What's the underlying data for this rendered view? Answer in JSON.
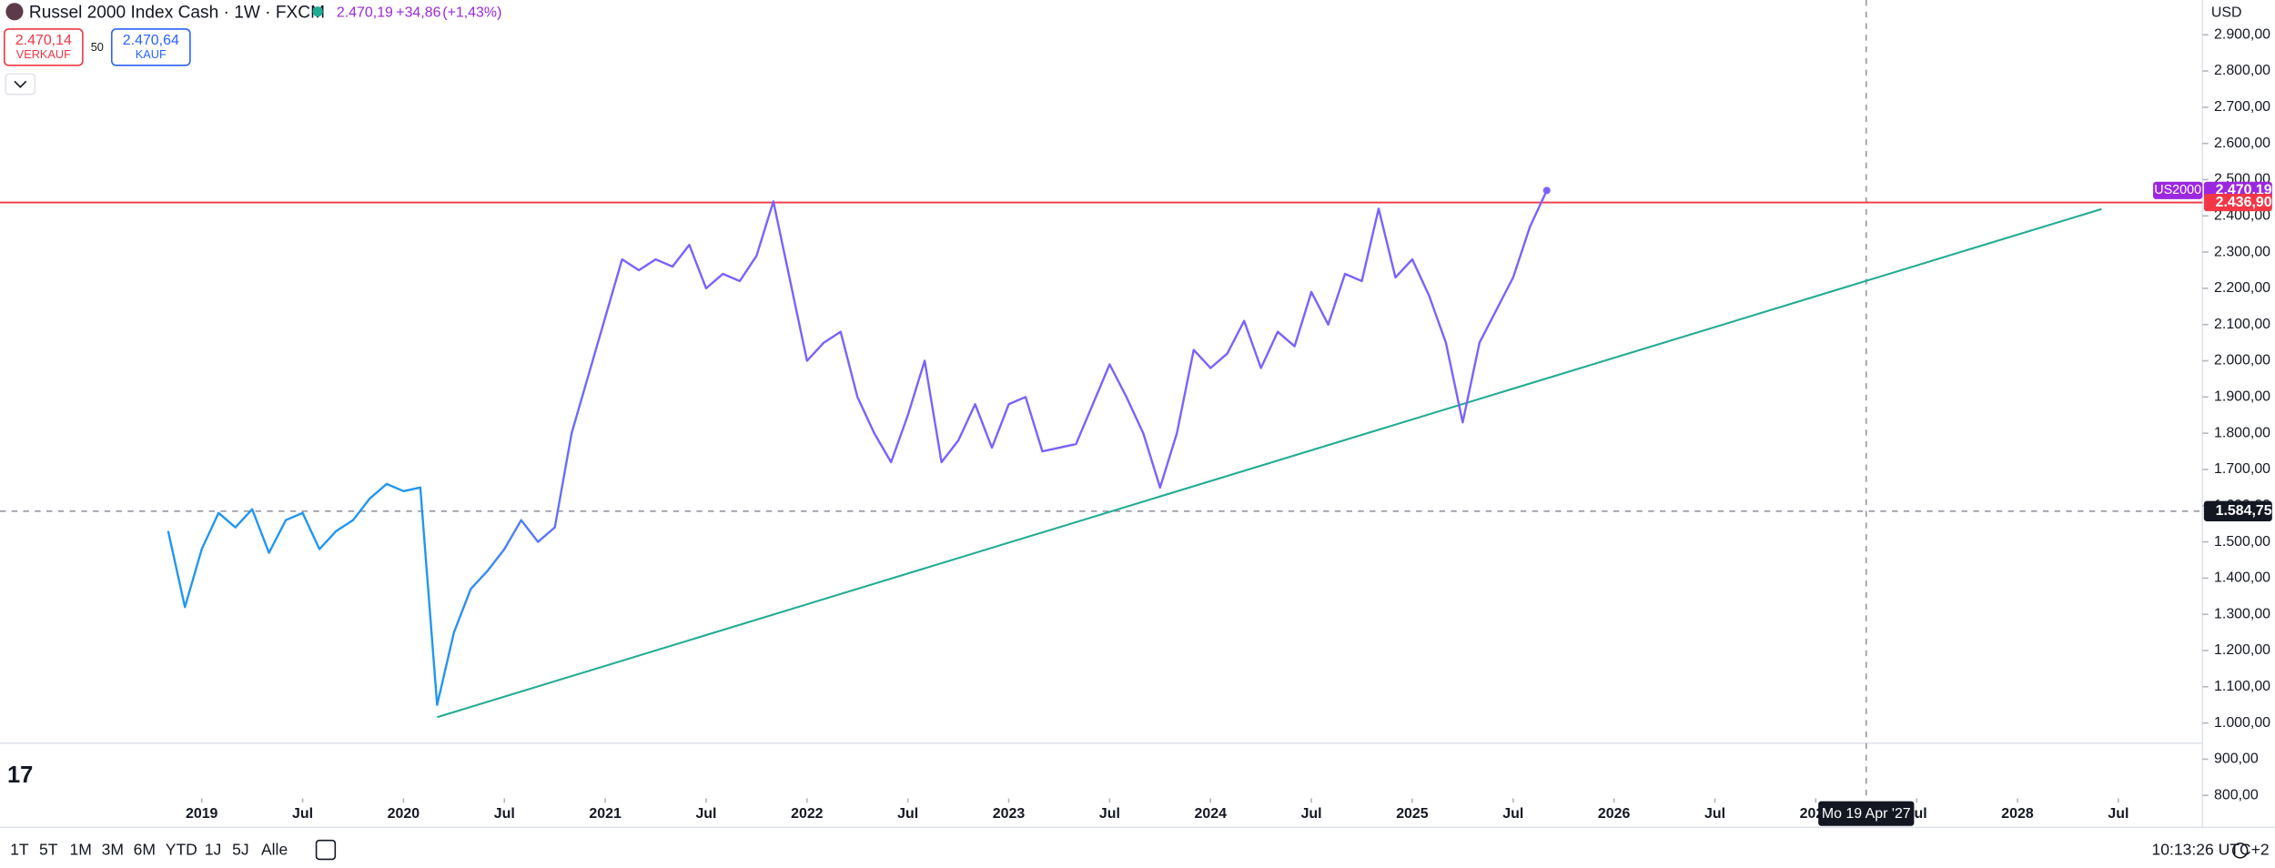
{
  "header": {
    "symbol": "Russel 2000 Index Cash · 1W · FXCM",
    "price": "2.470,19",
    "change": "+34,86",
    "change_pct": "(+1,43%)",
    "sell_price": "2.470,14",
    "sell_label": "VERKAUF",
    "spread": "50",
    "buy_price": "2.470,64",
    "buy_label": "KAUF"
  },
  "toolbar": {
    "ranges": [
      "1T",
      "5T",
      "1M",
      "3M",
      "6M",
      "YTD",
      "1J",
      "5J",
      "Alle"
    ],
    "clock": "10:13:26 UTC+2"
  },
  "chart_data": {
    "type": "line",
    "currency": "USD",
    "x": [
      "2018-11",
      "2018-12",
      "2019-01",
      "2019-02",
      "2019-03",
      "2019-04",
      "2019-05",
      "2019-06",
      "2019-07",
      "2019-08",
      "2019-09",
      "2019-10",
      "2019-11",
      "2019-12",
      "2020-01",
      "2020-02",
      "2020-03",
      "2020-04",
      "2020-05",
      "2020-06",
      "2020-07",
      "2020-08",
      "2020-09",
      "2020-10",
      "2020-11",
      "2020-12",
      "2021-01",
      "2021-02",
      "2021-03",
      "2021-04",
      "2021-05",
      "2021-06",
      "2021-07",
      "2021-08",
      "2021-09",
      "2021-10",
      "2021-11",
      "2021-12",
      "2022-01",
      "2022-02",
      "2022-03",
      "2022-04",
      "2022-05",
      "2022-06",
      "2022-07",
      "2022-08",
      "2022-09",
      "2022-10",
      "2022-11",
      "2022-12",
      "2023-01",
      "2023-02",
      "2023-03",
      "2023-04",
      "2023-05",
      "2023-06",
      "2023-07",
      "2023-08",
      "2023-09",
      "2023-10",
      "2023-11",
      "2023-12",
      "2024-01",
      "2024-02",
      "2024-03",
      "2024-04",
      "2024-05",
      "2024-06",
      "2024-07",
      "2024-08",
      "2024-09",
      "2024-10",
      "2024-11",
      "2024-12",
      "2025-01",
      "2025-02",
      "2025-03",
      "2025-04",
      "2025-05",
      "2025-06",
      "2025-07",
      "2025-08",
      "2025-09"
    ],
    "series": [
      {
        "name": "US2000",
        "color": "#7b61ff",
        "gradient_from": "#2196f3",
        "values": [
          1530,
          1320,
          1480,
          1580,
          1540,
          1590,
          1470,
          1560,
          1580,
          1480,
          1530,
          1560,
          1620,
          1660,
          1640,
          1650,
          1050,
          1250,
          1370,
          1420,
          1480,
          1560,
          1500,
          1540,
          1800,
          1960,
          2120,
          2280,
          2250,
          2280,
          2260,
          2320,
          2200,
          2240,
          2220,
          2290,
          2440,
          2220,
          2000,
          2050,
          2080,
          1900,
          1800,
          1720,
          1850,
          2000,
          1720,
          1780,
          1880,
          1760,
          1880,
          1900,
          1750,
          1760,
          1770,
          1880,
          1990,
          1900,
          1800,
          1650,
          1800,
          2030,
          1980,
          2020,
          2110,
          1980,
          2080,
          2040,
          2190,
          2100,
          2240,
          2220,
          2420,
          2230,
          2280,
          2180,
          2050,
          1830,
          2050,
          2140,
          2230,
          2370,
          2470.19
        ]
      }
    ],
    "last": {
      "value": 2470.19,
      "label": "2.470,19",
      "color": "#9c27e0"
    },
    "hline": {
      "value": 2436.9,
      "label": "2.436,90",
      "color": "#f23645"
    },
    "trendline": {
      "x": [
        "2020-03",
        "2028-06"
      ],
      "values": [
        1016,
        2419
      ],
      "color": "#22ab94"
    },
    "crosshair": {
      "x": "2027-04",
      "x_label": "Mo 19 Apr '27",
      "value": 1584.75,
      "label": "1.584,75"
    },
    "xlim": [
      "2018-01",
      "2028-12"
    ],
    "xticks": [
      {
        "value": "2019-01",
        "label": "2019"
      },
      {
        "value": "2019-07",
        "label": "Jul"
      },
      {
        "value": "2020-01",
        "label": "2020"
      },
      {
        "value": "2020-07",
        "label": "Jul"
      },
      {
        "value": "2021-01",
        "label": "2021"
      },
      {
        "value": "2021-07",
        "label": "Jul"
      },
      {
        "value": "2022-01",
        "label": "2022"
      },
      {
        "value": "2022-07",
        "label": "Jul"
      },
      {
        "value": "2023-01",
        "label": "2023"
      },
      {
        "value": "2023-07",
        "label": "Jul"
      },
      {
        "value": "2024-01",
        "label": "2024"
      },
      {
        "value": "2024-07",
        "label": "Jul"
      },
      {
        "value": "2025-01",
        "label": "2025"
      },
      {
        "value": "2025-07",
        "label": "Jul"
      },
      {
        "value": "2026-01",
        "label": "2026"
      },
      {
        "value": "2026-07",
        "label": "Jul"
      },
      {
        "value": "2027-01",
        "label": "2027"
      },
      {
        "value": "2027-07",
        "label": "Jul"
      },
      {
        "value": "2028-01",
        "label": "2028"
      },
      {
        "value": "2028-07",
        "label": "Jul"
      }
    ],
    "ylim": [
      792,
      2996
    ],
    "yticks": [
      {
        "value": 800,
        "label": "800,00"
      },
      {
        "value": 900,
        "label": "900,00"
      },
      {
        "value": 1000,
        "label": "1.000,00"
      },
      {
        "value": 1100,
        "label": "1.100,00"
      },
      {
        "value": 1200,
        "label": "1.200,00"
      },
      {
        "value": 1300,
        "label": "1.300,00"
      },
      {
        "value": 1400,
        "label": "1.400,00"
      },
      {
        "value": 1500,
        "label": "1.500,00"
      },
      {
        "value": 1600,
        "label": "1.600,00"
      },
      {
        "value": 1700,
        "label": "1.700,00"
      },
      {
        "value": 1800,
        "label": "1.800,00"
      },
      {
        "value": 1900,
        "label": "1.900,00"
      },
      {
        "value": 2000,
        "label": "2.000,00"
      },
      {
        "value": 2100,
        "label": "2.100,00"
      },
      {
        "value": 2200,
        "label": "2.200,00"
      },
      {
        "value": 2300,
        "label": "2.300,00"
      },
      {
        "value": 2400,
        "label": "2.400,00"
      },
      {
        "value": 2500,
        "label": "2.500,00"
      },
      {
        "value": 2600,
        "label": "2.600,00"
      },
      {
        "value": 2700,
        "label": "2.700,00"
      },
      {
        "value": 2800,
        "label": "2.800,00"
      },
      {
        "value": 2900,
        "label": "2.900,00"
      }
    ],
    "grid": false
  }
}
